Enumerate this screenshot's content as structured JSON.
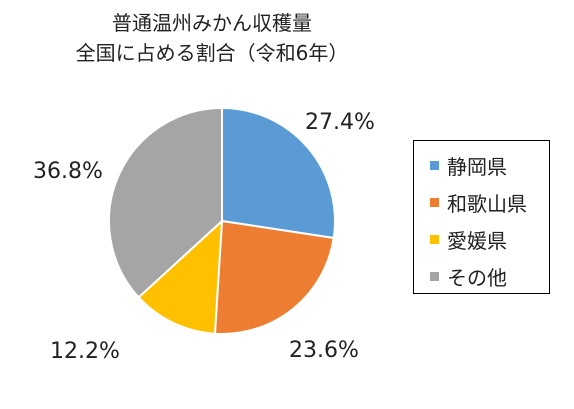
{
  "chart_data": {
    "type": "pie",
    "title_lines": [
      "普通温州みかん収穫量",
      "全国に占める割合（令和6年）"
    ],
    "slices": [
      {
        "label": "静岡県",
        "value": 27.4,
        "value_label": "27.4%",
        "color": "#5B9BD5"
      },
      {
        "label": "和歌山県",
        "value": 23.6,
        "value_label": "23.6%",
        "color": "#ED7D31"
      },
      {
        "label": "愛媛県",
        "value": 12.2,
        "value_label": "12.2%",
        "color": "#FFC000"
      },
      {
        "label": "その他",
        "value": 36.8,
        "value_label": "36.8%",
        "color": "#A5A5A5"
      }
    ],
    "start_angle": "12 o'clock",
    "direction": "clockwise",
    "legend_position": "right"
  }
}
